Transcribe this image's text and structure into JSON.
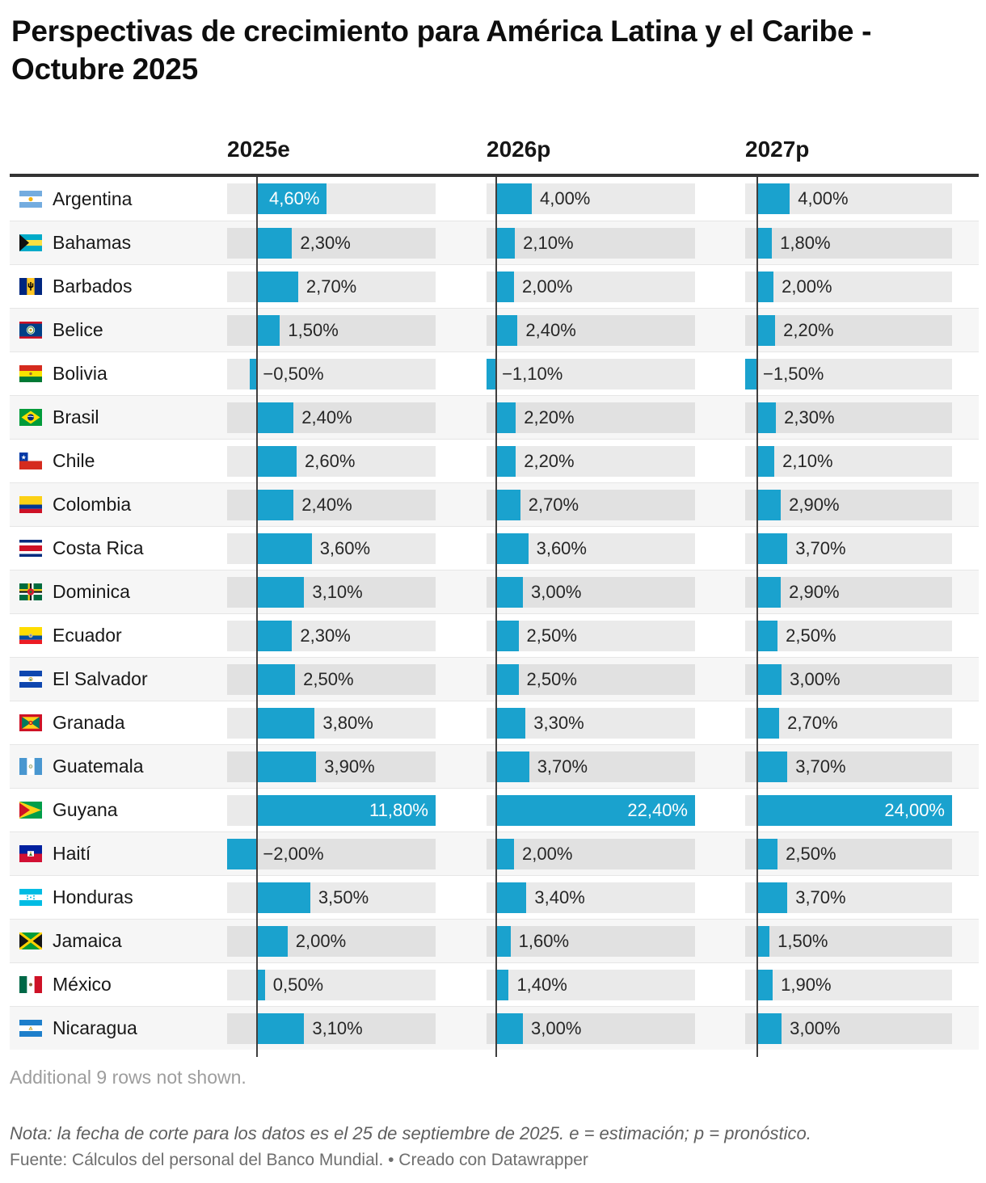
{
  "title": "Perspectivas de crecimiento para América Latina y el Caribe - Octubre 2025",
  "columns": [
    {
      "label": "2025e"
    },
    {
      "label": "2026p"
    },
    {
      "label": "2027p"
    }
  ],
  "rows": [
    {
      "country": "Argentina",
      "flag": "argentina",
      "values": [
        4.6,
        4.0,
        4.0
      ],
      "labels": [
        "4,60%",
        "4,00%",
        "4,00%"
      ]
    },
    {
      "country": "Bahamas",
      "flag": "bahamas",
      "values": [
        2.3,
        2.1,
        1.8
      ],
      "labels": [
        "2,30%",
        "2,10%",
        "1,80%"
      ]
    },
    {
      "country": "Barbados",
      "flag": "barbados",
      "values": [
        2.7,
        2.0,
        2.0
      ],
      "labels": [
        "2,70%",
        "2,00%",
        "2,00%"
      ]
    },
    {
      "country": "Belice",
      "flag": "belize",
      "values": [
        1.5,
        2.4,
        2.2
      ],
      "labels": [
        "1,50%",
        "2,40%",
        "2,20%"
      ]
    },
    {
      "country": "Bolivia",
      "flag": "bolivia",
      "values": [
        -0.5,
        -1.1,
        -1.5
      ],
      "labels": [
        "−0,50%",
        "−1,10%",
        "−1,50%"
      ]
    },
    {
      "country": "Brasil",
      "flag": "brazil",
      "values": [
        2.4,
        2.2,
        2.3
      ],
      "labels": [
        "2,40%",
        "2,20%",
        "2,30%"
      ]
    },
    {
      "country": "Chile",
      "flag": "chile",
      "values": [
        2.6,
        2.2,
        2.1
      ],
      "labels": [
        "2,60%",
        "2,20%",
        "2,10%"
      ]
    },
    {
      "country": "Colombia",
      "flag": "colombia",
      "values": [
        2.4,
        2.7,
        2.9
      ],
      "labels": [
        "2,40%",
        "2,70%",
        "2,90%"
      ]
    },
    {
      "country": "Costa Rica",
      "flag": "costa_rica",
      "values": [
        3.6,
        3.6,
        3.7
      ],
      "labels": [
        "3,60%",
        "3,60%",
        "3,70%"
      ]
    },
    {
      "country": "Dominica",
      "flag": "dominica",
      "values": [
        3.1,
        3.0,
        2.9
      ],
      "labels": [
        "3,10%",
        "3,00%",
        "2,90%"
      ]
    },
    {
      "country": "Ecuador",
      "flag": "ecuador",
      "values": [
        2.3,
        2.5,
        2.5
      ],
      "labels": [
        "2,30%",
        "2,50%",
        "2,50%"
      ]
    },
    {
      "country": "El Salvador",
      "flag": "el_salvador",
      "values": [
        2.5,
        2.5,
        3.0
      ],
      "labels": [
        "2,50%",
        "2,50%",
        "3,00%"
      ]
    },
    {
      "country": "Granada",
      "flag": "grenada",
      "values": [
        3.8,
        3.3,
        2.7
      ],
      "labels": [
        "3,80%",
        "3,30%",
        "2,70%"
      ]
    },
    {
      "country": "Guatemala",
      "flag": "guatemala",
      "values": [
        3.9,
        3.7,
        3.7
      ],
      "labels": [
        "3,90%",
        "3,70%",
        "3,70%"
      ]
    },
    {
      "country": "Guyana",
      "flag": "guyana",
      "values": [
        11.8,
        22.4,
        24.0
      ],
      "labels": [
        "11,80%",
        "22,40%",
        "24,00%"
      ]
    },
    {
      "country": "Haití",
      "flag": "haiti",
      "values": [
        -2.0,
        2.0,
        2.5
      ],
      "labels": [
        "−2,00%",
        "2,00%",
        "2,50%"
      ]
    },
    {
      "country": "Honduras",
      "flag": "honduras",
      "values": [
        3.5,
        3.4,
        3.7
      ],
      "labels": [
        "3,50%",
        "3,40%",
        "3,70%"
      ]
    },
    {
      "country": "Jamaica",
      "flag": "jamaica",
      "values": [
        2.0,
        1.6,
        1.5
      ],
      "labels": [
        "2,00%",
        "1,60%",
        "1,50%"
      ]
    },
    {
      "country": "México",
      "flag": "mexico",
      "values": [
        0.5,
        1.4,
        1.9
      ],
      "labels": [
        "0,50%",
        "1,40%",
        "1,90%"
      ]
    },
    {
      "country": "Nicaragua",
      "flag": "nicaragua",
      "values": [
        3.1,
        3.0,
        3.0
      ],
      "labels": [
        "3,10%",
        "3,00%",
        "3,00%"
      ]
    }
  ],
  "footer": {
    "hidden_rows_note": "Additional 9 rows not shown.",
    "note": "Nota: la fecha de corte para los datos es el 25 de septiembre de 2025. e = estimación; p = pronóstico.",
    "source": "Fuente: Cálculos del personal del Banco Mundial. • Creado con Datawrapper"
  },
  "colors": {
    "bar": "#1aa2ce",
    "axis_line": "#3f3f3f",
    "header_rule": "#333333",
    "row_alt_background": "#f6f6f6"
  },
  "chart_data": {
    "type": "bar",
    "title": "Perspectivas de crecimiento para América Latina y el Caribe - Octubre 2025",
    "categories": [
      "Argentina",
      "Bahamas",
      "Barbados",
      "Belice",
      "Bolivia",
      "Brasil",
      "Chile",
      "Colombia",
      "Costa Rica",
      "Dominica",
      "Ecuador",
      "El Salvador",
      "Granada",
      "Guatemala",
      "Guyana",
      "Haití",
      "Honduras",
      "Jamaica",
      "México",
      "Nicaragua"
    ],
    "series": [
      {
        "name": "2025e",
        "values": [
          4.6,
          2.3,
          2.7,
          1.5,
          -0.5,
          2.4,
          2.6,
          2.4,
          3.6,
          3.1,
          2.3,
          2.5,
          3.8,
          3.9,
          11.8,
          -2.0,
          3.5,
          2.0,
          0.5,
          3.1
        ]
      },
      {
        "name": "2026p",
        "values": [
          4.0,
          2.1,
          2.0,
          2.4,
          -1.1,
          2.2,
          2.2,
          2.7,
          3.6,
          3.0,
          2.5,
          2.5,
          3.3,
          3.7,
          22.4,
          2.0,
          3.4,
          1.6,
          1.4,
          3.0
        ]
      },
      {
        "name": "2027p",
        "values": [
          4.0,
          1.8,
          2.0,
          2.2,
          -1.5,
          2.3,
          2.1,
          2.9,
          3.7,
          2.9,
          2.5,
          3.0,
          2.7,
          3.7,
          24.0,
          2.5,
          3.7,
          1.5,
          1.9,
          3.0
        ]
      }
    ],
    "value_format": "percent, comma decimal, 2 decimals",
    "axis_ranges_per_column": [
      [
        -2.0,
        11.8
      ],
      [
        -1.1,
        22.4
      ],
      [
        -1.5,
        24.0
      ]
    ],
    "grid": false,
    "legend": false,
    "orientation": "horizontal bars, one column per series, independent scale per column"
  }
}
